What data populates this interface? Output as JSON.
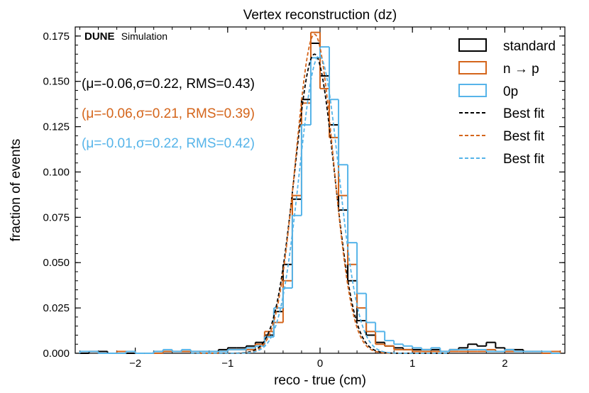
{
  "chart_data": {
    "type": "line",
    "title": "Vertex reconstruction (dz)",
    "watermark": {
      "bold": "DUNE",
      "normal": "Simulation"
    },
    "xlabel": "reco - true (cm)",
    "ylabel": "fraction of events",
    "xlim": [
      -2.65,
      2.65
    ],
    "ylim": [
      0.0,
      0.18
    ],
    "xticks": [
      -2,
      -1,
      0,
      1,
      2
    ],
    "xtick_labels": [
      "−2",
      "−1",
      "0",
      "1",
      "2"
    ],
    "yticks": [
      0.0,
      0.025,
      0.05,
      0.075,
      0.1,
      0.125,
      0.15,
      0.175
    ],
    "ytick_labels": [
      "0.000",
      "0.025",
      "0.050",
      "0.075",
      "0.100",
      "0.125",
      "0.150",
      "0.175"
    ],
    "grid": false,
    "legend_position": "top-right",
    "series": [
      {
        "name": "standard",
        "kind": "histogram",
        "color": "#000000",
        "annotation": "(μ=-0.06,σ=0.22, RMS=0.43)",
        "bins": [
          [
            -2.6,
            0.0
          ],
          [
            -2.5,
            0.001
          ],
          [
            -2.4,
            0.001
          ],
          [
            -2.3,
            0.0
          ],
          [
            -2.2,
            0.0
          ],
          [
            -2.1,
            0.0
          ],
          [
            -2.0,
            0.0
          ],
          [
            -1.9,
            0.0
          ],
          [
            -1.8,
            0.001
          ],
          [
            -1.7,
            0.001
          ],
          [
            -1.6,
            0.001
          ],
          [
            -1.5,
            0.001
          ],
          [
            -1.4,
            0.001
          ],
          [
            -1.3,
            0.001
          ],
          [
            -1.2,
            0.001
          ],
          [
            -1.1,
            0.002
          ],
          [
            -1.0,
            0.003
          ],
          [
            -0.9,
            0.003
          ],
          [
            -0.8,
            0.004
          ],
          [
            -0.7,
            0.006
          ],
          [
            -0.6,
            0.01
          ],
          [
            -0.5,
            0.023
          ],
          [
            -0.4,
            0.049
          ],
          [
            -0.3,
            0.085
          ],
          [
            -0.2,
            0.14
          ],
          [
            -0.1,
            0.171
          ],
          [
            0.0,
            0.153
          ],
          [
            0.1,
            0.126
          ],
          [
            0.2,
            0.079
          ],
          [
            0.3,
            0.04
          ],
          [
            0.4,
            0.018
          ],
          [
            0.5,
            0.01
          ],
          [
            0.6,
            0.006
          ],
          [
            0.7,
            0.004
          ],
          [
            0.8,
            0.003
          ],
          [
            0.9,
            0.002
          ],
          [
            1.0,
            0.002
          ],
          [
            1.1,
            0.002
          ],
          [
            1.2,
            0.002
          ],
          [
            1.3,
            0.001
          ],
          [
            1.4,
            0.002
          ],
          [
            1.5,
            0.003
          ],
          [
            1.6,
            0.005
          ],
          [
            1.7,
            0.004
          ],
          [
            1.8,
            0.006
          ],
          [
            1.9,
            0.003
          ],
          [
            2.0,
            0.002
          ],
          [
            2.1,
            0.002
          ],
          [
            2.2,
            0.001
          ],
          [
            2.3,
            0.001
          ],
          [
            2.4,
            0.0
          ],
          [
            2.5,
            0.0
          ]
        ]
      },
      {
        "name": "n → p",
        "kind": "histogram",
        "color": "#d4651b",
        "annotation": "(μ=-0.06,σ=0.21, RMS=0.39)",
        "bins": [
          [
            -2.6,
            0.001
          ],
          [
            -2.5,
            0.001
          ],
          [
            -2.4,
            0.0
          ],
          [
            -2.3,
            0.0
          ],
          [
            -2.2,
            0.001
          ],
          [
            -2.1,
            0.001
          ],
          [
            -2.0,
            0.0
          ],
          [
            -1.9,
            0.0
          ],
          [
            -1.8,
            0.0
          ],
          [
            -1.7,
            0.001
          ],
          [
            -1.6,
            0.001
          ],
          [
            -1.5,
            0.001
          ],
          [
            -1.4,
            0.001
          ],
          [
            -1.3,
            0.0
          ],
          [
            -1.2,
            0.0
          ],
          [
            -1.1,
            0.001
          ],
          [
            -1.0,
            0.002
          ],
          [
            -0.9,
            0.002
          ],
          [
            -0.8,
            0.002
          ],
          [
            -0.7,
            0.005
          ],
          [
            -0.6,
            0.012
          ],
          [
            -0.5,
            0.017
          ],
          [
            -0.4,
            0.04
          ],
          [
            -0.3,
            0.087
          ],
          [
            -0.2,
            0.138
          ],
          [
            -0.1,
            0.177
          ],
          [
            0.0,
            0.146
          ],
          [
            0.1,
            0.119
          ],
          [
            0.2,
            0.087
          ],
          [
            0.3,
            0.049
          ],
          [
            0.4,
            0.025
          ],
          [
            0.5,
            0.012
          ],
          [
            0.6,
            0.005
          ],
          [
            0.7,
            0.004
          ],
          [
            0.8,
            0.002
          ],
          [
            0.9,
            0.002
          ],
          [
            1.0,
            0.001
          ],
          [
            1.1,
            0.001
          ],
          [
            1.2,
            0.001
          ],
          [
            1.3,
            0.001
          ],
          [
            1.4,
            0.001
          ],
          [
            1.5,
            0.001
          ],
          [
            1.6,
            0.001
          ],
          [
            1.7,
            0.001
          ],
          [
            1.8,
            0.002
          ],
          [
            1.9,
            0.001
          ],
          [
            2.0,
            0.001
          ],
          [
            2.1,
            0.001
          ],
          [
            2.2,
            0.001
          ],
          [
            2.3,
            0.001
          ],
          [
            2.4,
            0.0
          ],
          [
            2.5,
            0.001
          ]
        ]
      },
      {
        "name": "0p",
        "kind": "histogram",
        "color": "#56b4e9",
        "annotation": "(μ=-0.01,σ=0.22, RMS=0.42)",
        "bins": [
          [
            -2.6,
            0.001
          ],
          [
            -2.5,
            0.001
          ],
          [
            -2.4,
            0.0
          ],
          [
            -2.3,
            0.0
          ],
          [
            -2.2,
            0.0
          ],
          [
            -2.1,
            0.001
          ],
          [
            -2.0,
            0.0
          ],
          [
            -1.9,
            0.0
          ],
          [
            -1.8,
            0.001
          ],
          [
            -1.7,
            0.002
          ],
          [
            -1.6,
            0.001
          ],
          [
            -1.5,
            0.002
          ],
          [
            -1.4,
            0.001
          ],
          [
            -1.3,
            0.001
          ],
          [
            -1.2,
            0.001
          ],
          [
            -1.1,
            0.001
          ],
          [
            -1.0,
            0.002
          ],
          [
            -0.9,
            0.002
          ],
          [
            -0.8,
            0.003
          ],
          [
            -0.7,
            0.004
          ],
          [
            -0.6,
            0.009
          ],
          [
            -0.5,
            0.025
          ],
          [
            -0.4,
            0.036
          ],
          [
            -0.3,
            0.076
          ],
          [
            -0.2,
            0.126
          ],
          [
            -0.1,
            0.163
          ],
          [
            0.0,
            0.169
          ],
          [
            0.1,
            0.14
          ],
          [
            0.2,
            0.104
          ],
          [
            0.3,
            0.061
          ],
          [
            0.4,
            0.033
          ],
          [
            0.5,
            0.017
          ],
          [
            0.6,
            0.012
          ],
          [
            0.7,
            0.007
          ],
          [
            0.8,
            0.005
          ],
          [
            0.9,
            0.004
          ],
          [
            1.0,
            0.003
          ],
          [
            1.1,
            0.002
          ],
          [
            1.2,
            0.003
          ],
          [
            1.3,
            0.001
          ],
          [
            1.4,
            0.002
          ],
          [
            1.5,
            0.002
          ],
          [
            1.6,
            0.002
          ],
          [
            1.7,
            0.002
          ],
          [
            1.8,
            0.001
          ],
          [
            1.9,
            0.001
          ],
          [
            2.0,
            0.002
          ],
          [
            2.1,
            0.001
          ],
          [
            2.2,
            0.001
          ],
          [
            2.3,
            0.001
          ],
          [
            2.4,
            0.001
          ],
          [
            2.5,
            0.0
          ]
        ]
      },
      {
        "name": "Best fit",
        "kind": "gaussian",
        "color": "#000000",
        "mu": -0.06,
        "sigma": 0.215,
        "amplitude": 0.165
      },
      {
        "name": "Best fit",
        "kind": "gaussian",
        "color": "#d4651b",
        "mu": -0.06,
        "sigma": 0.205,
        "amplitude": 0.176
      },
      {
        "name": "Best fit",
        "kind": "gaussian",
        "color": "#56b4e9",
        "mu": -0.01,
        "sigma": 0.215,
        "amplitude": 0.164
      }
    ]
  }
}
